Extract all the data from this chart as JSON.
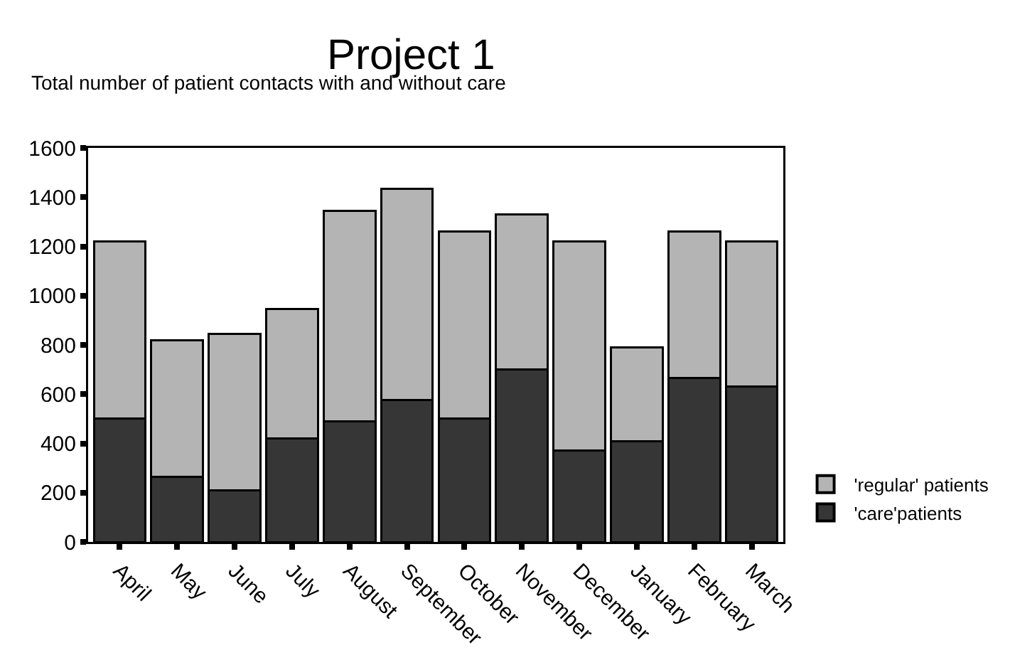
{
  "chart_data": {
    "type": "bar",
    "title": "Project 1",
    "subtitle": "Total number of patient contacts with and without care",
    "categories": [
      "April",
      "May",
      "June",
      "July",
      "August",
      "September",
      "October",
      "November",
      "December",
      "January",
      "February",
      "March"
    ],
    "stacked": true,
    "series": [
      {
        "name": "'care'patients",
        "color": "#363636",
        "values": [
          500,
          265,
          210,
          420,
          490,
          575,
          500,
          700,
          370,
          410,
          665,
          630
        ]
      },
      {
        "name": "'regular' patients",
        "color": "#b4b4b4",
        "values": [
          720,
          555,
          635,
          525,
          855,
          860,
          760,
          630,
          850,
          380,
          595,
          590
        ]
      }
    ],
    "ylim": [
      0,
      1600
    ],
    "yticks": [
      0,
      200,
      400,
      600,
      800,
      1000,
      1200,
      1400,
      1600
    ],
    "grid": false,
    "legend": "bottom right"
  }
}
